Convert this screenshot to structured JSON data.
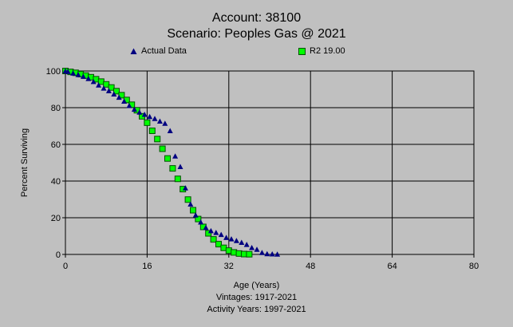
{
  "colors": {
    "background": "#c0c0c0",
    "plot_background": "#c0c0c0",
    "grid": "#000000",
    "actual_marker": "#000080",
    "r2_fill": "#00ff00",
    "r2_stroke": "#005000"
  },
  "icons": {
    "actual_marker": "blue-triangle-marker",
    "r2_marker": "green-square-marker"
  },
  "chart_data": {
    "type": "scatter",
    "title": "Account: 38100",
    "subtitle": "Scenario: Peoples Gas @ 2021",
    "xlabel": "Age (Years)",
    "ylabel": "Percent Surviving",
    "xlim": [
      0,
      80
    ],
    "ylim": [
      0,
      100
    ],
    "xticks": [
      0,
      16,
      32,
      48,
      64,
      80
    ],
    "yticks": [
      0,
      20,
      40,
      60,
      80,
      100
    ],
    "grid": true,
    "legend_position": "top",
    "footer": [
      "Vintages: 1917-2021",
      "Activity Years: 1997-2021"
    ],
    "series": [
      {
        "name": "Actual Data",
        "marker": "triangle",
        "x": [
          0,
          0.5,
          1.5,
          2.5,
          3.5,
          4.5,
          5.5,
          6.5,
          7.5,
          8.5,
          9.5,
          10.5,
          11.5,
          12.5,
          13.5,
          14.5,
          15.5,
          16.5,
          17.5,
          18.5,
          19.5,
          20.5,
          21.5,
          22.5,
          23.5,
          24.5,
          25.5,
          26.5,
          27.5,
          28.5,
          29.5,
          30.5,
          31.5,
          32.5,
          33.5,
          34.5,
          35.5,
          36.5,
          37.5,
          38.5,
          39.5,
          40.5,
          41.5
        ],
        "y": [
          100,
          99.6,
          98.8,
          98.0,
          97.0,
          95.8,
          94.2,
          92.3,
          90.6,
          89.2,
          87.4,
          85.6,
          83.5,
          81.1,
          79.1,
          77.5,
          76.3,
          75.1,
          74.0,
          72.6,
          71.4,
          67.4,
          53.6,
          47.8,
          36.2,
          27.4,
          21.4,
          17.6,
          14.6,
          12.9,
          11.9,
          10.8,
          9.2,
          8.4,
          7.5,
          6.5,
          5.4,
          3.7,
          2.7,
          1.0,
          0.3,
          0.2,
          0.1
        ]
      },
      {
        "name": "R2 19.00",
        "marker": "square",
        "x": [
          0,
          1,
          2,
          3,
          4,
          5,
          6,
          7,
          8,
          9,
          10,
          11,
          12,
          13,
          14,
          15,
          16,
          17,
          18,
          19,
          20,
          21,
          22,
          23,
          24,
          25,
          26,
          27,
          28,
          29,
          30,
          31,
          32,
          33,
          34,
          35,
          36
        ],
        "y": [
          100,
          99.5,
          99,
          98.3,
          97.5,
          96.6,
          95.5,
          94.2,
          92.7,
          91,
          89,
          86.8,
          84.2,
          81.6,
          78.6,
          75.3,
          71.8,
          67.4,
          62.9,
          57.6,
          52.3,
          46.9,
          41.2,
          35.6,
          29.9,
          24.1,
          19.3,
          15,
          11.5,
          8.2,
          5.6,
          3.6,
          2.1,
          1.1,
          0.5,
          0.2,
          0.1
        ]
      }
    ]
  }
}
